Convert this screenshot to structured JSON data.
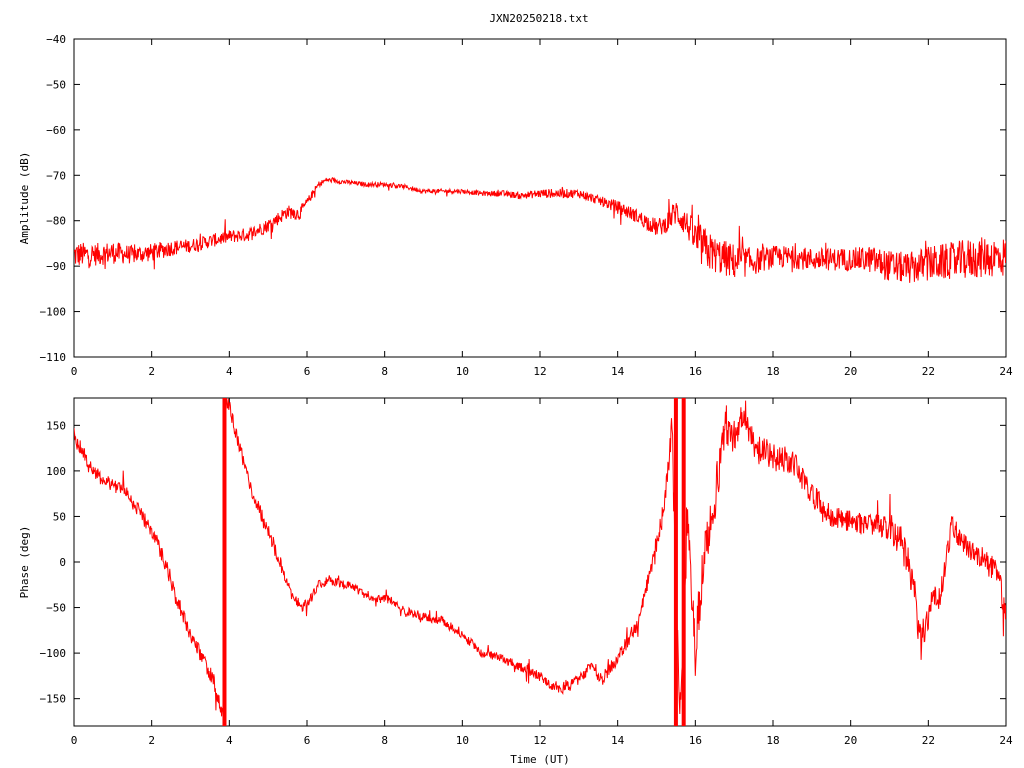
{
  "title": "JXN20250218.txt",
  "chart_data": [
    {
      "type": "line",
      "title": "JXN20250218.txt",
      "xlabel": "",
      "ylabel": "Amplitude (dB)",
      "xlim": [
        0,
        24
      ],
      "ylim": [
        -110,
        -40
      ],
      "xticks": [
        0,
        2,
        4,
        6,
        8,
        10,
        12,
        14,
        16,
        18,
        20,
        22,
        24
      ],
      "yticks": [
        -40,
        -50,
        -60,
        -70,
        -80,
        -90,
        -100,
        -110
      ],
      "grid": false,
      "series": [
        {
          "color": "#ff0000",
          "x": [
            0,
            0.5,
            1,
            1.5,
            2,
            2.5,
            3,
            3.5,
            4,
            4.5,
            5,
            5.5,
            5.8,
            6,
            6.3,
            6.5,
            7,
            7.5,
            8,
            8.5,
            9,
            9.5,
            10,
            10.5,
            11,
            11.5,
            12,
            12.5,
            13,
            13.5,
            14,
            14.5,
            15,
            15.2,
            15.5,
            15.8,
            16,
            16.2,
            16.5,
            17,
            17.5,
            18,
            18.5,
            19,
            19.5,
            20,
            20.5,
            21,
            21.5,
            22,
            22.5,
            23,
            23.5,
            24
          ],
          "y": [
            -87.5,
            -87.5,
            -87,
            -87.5,
            -87,
            -86,
            -85.5,
            -84.5,
            -83.5,
            -83,
            -81,
            -78,
            -78.5,
            -76,
            -72,
            -71,
            -71.5,
            -72,
            -72,
            -72.5,
            -73.5,
            -73.5,
            -73.5,
            -74,
            -74,
            -74.5,
            -74,
            -74,
            -74,
            -75.5,
            -77,
            -79,
            -81.5,
            -81,
            -78,
            -81,
            -84,
            -86,
            -87.5,
            -89,
            -89,
            -88,
            -88,
            -88.5,
            -88.5,
            -88.5,
            -88.5,
            -90,
            -90.5,
            -89.5,
            -89,
            -88.5,
            -88,
            -88
          ],
          "spread": [
            3,
            2.5,
            2.5,
            2,
            2,
            1.8,
            1.5,
            1.5,
            1.5,
            1.5,
            1.5,
            1.5,
            1.5,
            1,
            0.7,
            0.5,
            0.5,
            0.5,
            0.5,
            0.5,
            0.5,
            0.5,
            0.5,
            0.5,
            0.7,
            0.7,
            1,
            1,
            1,
            1,
            1.5,
            1.5,
            2,
            2,
            3,
            3,
            4,
            5,
            4,
            4,
            3,
            2.5,
            2.5,
            2.5,
            2.5,
            2.5,
            3,
            3.5,
            3.5,
            4,
            4,
            4.5,
            4.5,
            4.5
          ]
        }
      ]
    },
    {
      "type": "line",
      "title": "",
      "xlabel": "Time (UT)",
      "ylabel": "Phase (deg)",
      "xlim": [
        0,
        24
      ],
      "ylim": [
        -180,
        180
      ],
      "xticks": [
        0,
        2,
        4,
        6,
        8,
        10,
        12,
        14,
        16,
        18,
        20,
        22,
        24
      ],
      "yticks": [
        150,
        100,
        50,
        0,
        -50,
        -100,
        -150
      ],
      "grid": false,
      "series": [
        {
          "color": "#ff0000",
          "x": [
            0,
            0.3,
            0.6,
            1,
            1.3,
            1.6,
            2,
            2.3,
            2.6,
            3,
            3.3,
            3.6,
            3.85,
            3.9,
            4,
            4.3,
            4.6,
            5,
            5.3,
            5.6,
            5.9,
            6.1,
            6.3,
            6.6,
            7,
            7.3,
            7.6,
            8,
            8.3,
            8.6,
            9,
            9.5,
            10,
            10.5,
            11,
            11.5,
            12,
            12.3,
            12.6,
            13,
            13.3,
            13.6,
            14,
            14.3,
            14.6,
            14.9,
            15.2,
            15.4,
            15.6,
            15.8,
            16,
            16.2,
            16.4,
            16.6,
            16.8,
            17,
            17.2,
            17.5,
            18,
            18.5,
            19,
            19.5,
            20,
            20.5,
            21,
            21.3,
            21.6,
            21.8,
            22.1,
            22.3,
            22.6,
            23,
            23.4,
            23.8,
            24
          ],
          "y": [
            140,
            115,
            95,
            85,
            80,
            60,
            35,
            5,
            -35,
            -80,
            -105,
            -130,
            -175,
            175,
            170,
            120,
            75,
            35,
            0,
            -35,
            -50,
            -40,
            -25,
            -20,
            -25,
            -30,
            -40,
            -40,
            -45,
            -55,
            -60,
            -65,
            -80,
            -100,
            -105,
            -115,
            -125,
            -135,
            -140,
            -130,
            -115,
            -130,
            -105,
            -85,
            -55,
            0,
            60,
            150,
            -170,
            40,
            -100,
            0,
            40,
            100,
            150,
            140,
            160,
            130,
            115,
            110,
            75,
            50,
            45,
            40,
            40,
            20,
            -20,
            -90,
            -40,
            -40,
            40,
            15,
            5,
            -15,
            -60
          ],
          "spread": [
            8,
            8,
            8,
            8,
            8,
            8,
            8,
            8,
            8,
            8,
            8,
            8,
            8,
            8,
            8,
            8,
            8,
            8,
            8,
            6,
            6,
            5,
            5,
            5,
            5,
            5,
            5,
            5,
            5,
            5,
            5,
            5,
            5,
            5,
            5,
            5,
            6,
            6,
            6,
            6,
            6,
            6,
            8,
            8,
            8,
            10,
            12,
            15,
            15,
            20,
            30,
            25,
            25,
            25,
            25,
            20,
            15,
            15,
            15,
            15,
            12,
            12,
            12,
            12,
            15,
            20,
            20,
            20,
            15,
            12,
            12,
            12,
            12,
            15,
            15
          ]
        }
      ]
    }
  ]
}
